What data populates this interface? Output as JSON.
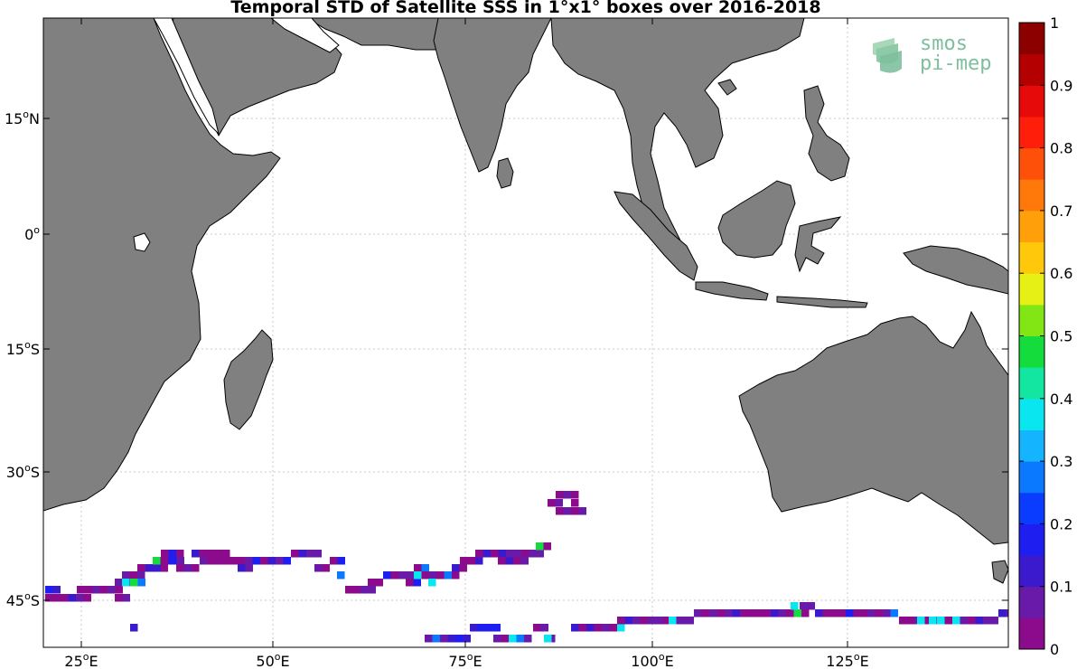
{
  "title": "Temporal STD of Satellite SSS in 1°x1° boxes over 2016-2018",
  "logo": {
    "line1": "smos",
    "line2": "pi-mep"
  },
  "colors": {
    "land": "#808080",
    "coast": "#000000",
    "grid": "#c8c8c8",
    "logo": "#7fbf9f"
  },
  "lat_labels": [
    {
      "deg": "15",
      "hemi": "N"
    },
    {
      "deg": "0",
      "hemi": ""
    },
    {
      "deg": "15",
      "hemi": "S"
    },
    {
      "deg": "30",
      "hemi": "S"
    },
    {
      "deg": "45",
      "hemi": "S"
    }
  ],
  "lon_labels": [
    {
      "deg": "25",
      "hemi": "E"
    },
    {
      "deg": "50",
      "hemi": "E"
    },
    {
      "deg": "75",
      "hemi": "E"
    },
    {
      "deg": "100",
      "hemi": "E"
    },
    {
      "deg": "125",
      "hemi": "E"
    }
  ],
  "colorbar": {
    "ticks": [
      "0",
      "0.1",
      "0.2",
      "0.3",
      "0.4",
      "0.5",
      "0.6",
      "0.7",
      "0.8",
      "0.9",
      "1"
    ],
    "colors": [
      "#8c0a8c",
      "#6a1aa8",
      "#3a1acc",
      "#1e1ef0",
      "#0a3cff",
      "#0a78ff",
      "#14b4ff",
      "#0ae6f0",
      "#12e6a0",
      "#14dc3c",
      "#82e614",
      "#e6f014",
      "#ffc80a",
      "#ffa00a",
      "#ff780a",
      "#ff500a",
      "#ff1e0a",
      "#e60a0a",
      "#b40000",
      "#8c0000"
    ]
  }
}
